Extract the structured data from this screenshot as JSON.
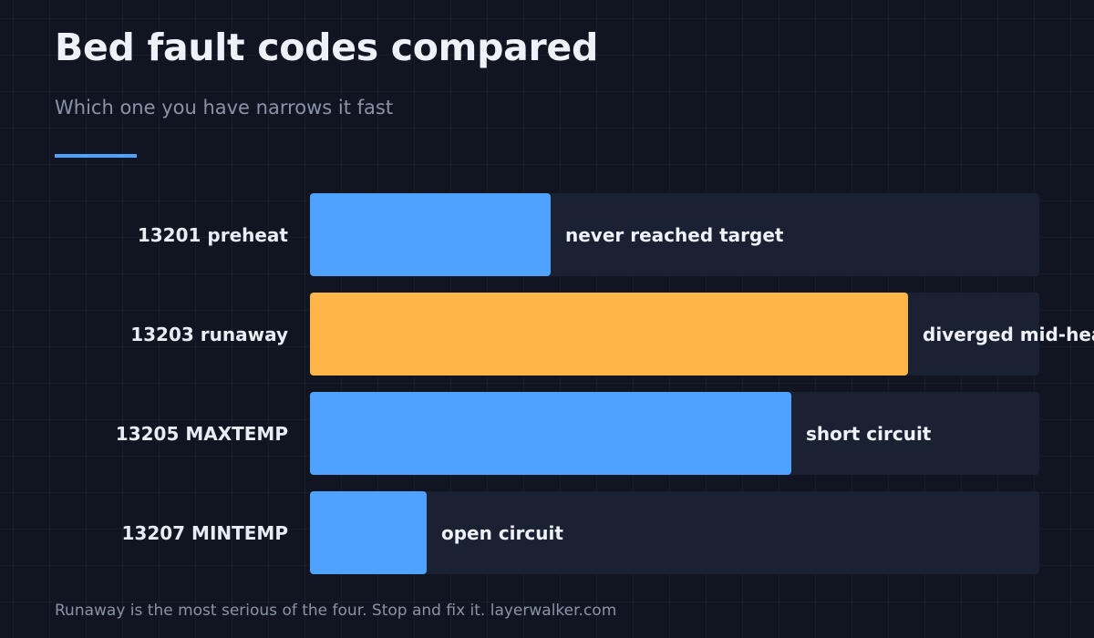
{
  "header": {
    "title": "Bed fault codes compared",
    "subtitle": "Which one you have narrows it fast"
  },
  "colors": {
    "accent": "#4da3ff",
    "highlight": "#ffb547",
    "track": "#1a2133"
  },
  "chart_data": {
    "type": "bar",
    "orientation": "horizontal",
    "title": "Bed fault codes compared",
    "subtitle": "Which one you have narrows it fast",
    "categories": [
      "13201 preheat",
      "13203 runaway",
      "13205 MAXTEMP",
      "13207 MINTEMP"
    ],
    "values": [
      33,
      82,
      66,
      16
    ],
    "bar_labels": [
      "never reached target",
      "diverged mid-heat",
      "short circuit",
      "open circuit"
    ],
    "highlighted": [
      false,
      true,
      false,
      false
    ],
    "xlim": [
      0,
      100
    ],
    "grid": false,
    "legend": "none"
  },
  "footer": {
    "note": "Runaway is the most serious of the four. Stop and fix it. layerwalker.com"
  }
}
